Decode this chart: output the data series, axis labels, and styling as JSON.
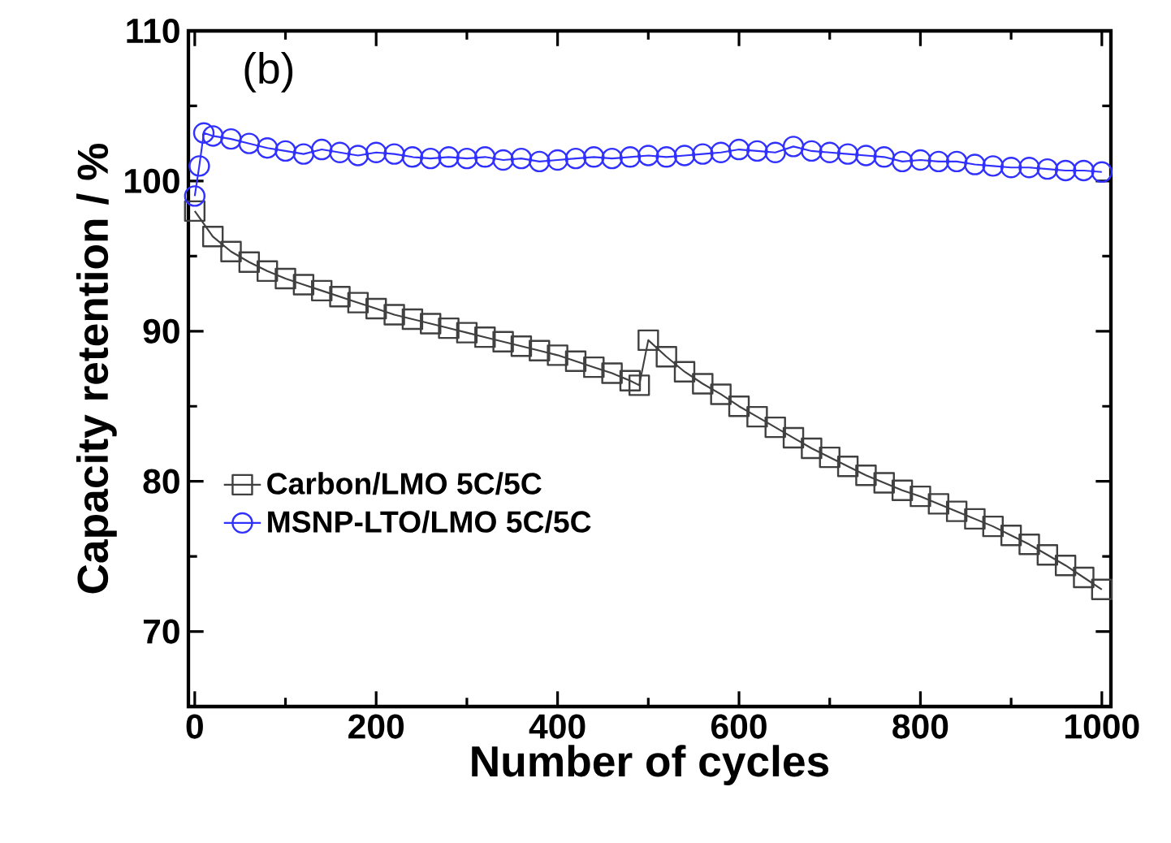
{
  "chart_data": {
    "type": "line",
    "xlabel": "Number of cycles",
    "ylabel": "Capacity retention  / %",
    "annotations": [
      "(b)"
    ],
    "xlim": [
      -7,
      1010
    ],
    "ylim": [
      65,
      110
    ],
    "xticks": [
      0,
      200,
      400,
      600,
      800,
      1000
    ],
    "yticks": [
      70,
      80,
      90,
      100,
      110
    ],
    "grid": false,
    "legend": "bottom left",
    "series": [
      {
        "name": "Carbon/LMO 5C/5C",
        "color": "#404040",
        "marker": "square",
        "x": [
          0,
          20,
          40,
          60,
          80,
          100,
          120,
          140,
          160,
          180,
          200,
          220,
          240,
          260,
          280,
          300,
          320,
          340,
          360,
          380,
          400,
          420,
          440,
          460,
          480,
          490,
          500,
          520,
          540,
          560,
          580,
          600,
          620,
          640,
          660,
          680,
          700,
          720,
          740,
          760,
          780,
          800,
          820,
          840,
          860,
          880,
          900,
          920,
          940,
          960,
          980,
          1000
        ],
        "values": [
          98,
          96.3,
          95.3,
          94.6,
          94.0,
          93.5,
          93.1,
          92.7,
          92.3,
          91.9,
          91.5,
          91.1,
          90.8,
          90.5,
          90.2,
          89.9,
          89.6,
          89.3,
          89.0,
          88.7,
          88.4,
          88.0,
          87.6,
          87.2,
          86.7,
          86.4,
          89.4,
          88.3,
          87.3,
          86.5,
          85.8,
          85.0,
          84.3,
          83.6,
          82.9,
          82.2,
          81.6,
          81.0,
          80.4,
          79.9,
          79.4,
          79.0,
          78.5,
          78.0,
          77.5,
          77.0,
          76.4,
          75.8,
          75.1,
          74.4,
          73.6,
          72.8
        ]
      },
      {
        "name": "MSNP-LTO/LMO 5C/5C",
        "color": "#3030ff",
        "marker": "circle",
        "x": [
          0,
          5,
          10,
          20,
          40,
          60,
          80,
          100,
          120,
          140,
          160,
          180,
          200,
          220,
          240,
          260,
          280,
          300,
          320,
          340,
          360,
          380,
          400,
          420,
          440,
          460,
          480,
          500,
          520,
          540,
          560,
          580,
          600,
          620,
          640,
          660,
          680,
          700,
          720,
          740,
          760,
          780,
          800,
          820,
          840,
          860,
          880,
          900,
          920,
          940,
          960,
          980,
          1000
        ],
        "values": [
          99,
          101,
          103.2,
          103,
          102.8,
          102.5,
          102.2,
          102,
          101.8,
          102.1,
          101.9,
          101.7,
          101.9,
          101.8,
          101.6,
          101.5,
          101.6,
          101.5,
          101.6,
          101.4,
          101.5,
          101.3,
          101.4,
          101.5,
          101.6,
          101.5,
          101.6,
          101.7,
          101.6,
          101.7,
          101.8,
          101.9,
          102.1,
          102.0,
          101.9,
          102.3,
          102.0,
          101.9,
          101.8,
          101.7,
          101.6,
          101.3,
          101.4,
          101.3,
          101.3,
          101.1,
          101.0,
          100.9,
          100.9,
          100.8,
          100.7,
          100.7,
          100.6
        ]
      }
    ]
  }
}
